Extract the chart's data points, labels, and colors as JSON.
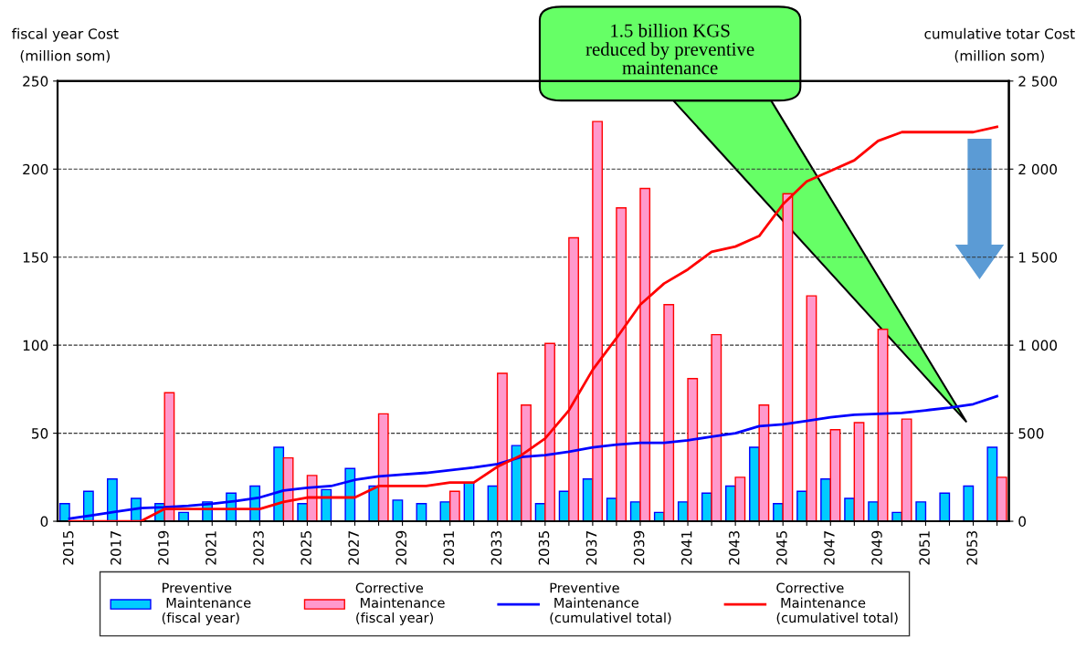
{
  "chart_data": {
    "type": "bar",
    "ylabel": "fiscal year Cost\n(million som)",
    "y2label": "cumulative totar Cost\n(million som)",
    "categories": [
      "2015",
      null,
      "2017",
      null,
      "2019",
      null,
      "2021",
      null,
      "2023",
      null,
      "2025",
      null,
      "2027",
      null,
      "2029",
      null,
      "2031",
      null,
      "2033",
      null,
      "2035",
      null,
      "2037",
      null,
      "2039",
      null,
      "2041",
      null,
      "2043",
      null,
      "2045",
      null,
      "2047",
      null,
      "2049",
      null,
      "2051",
      null,
      "2053",
      null
    ],
    "series": [
      {
        "name": "Preventive\n Maintenance\n(fiscal year)",
        "color": "#00ccff",
        "values": [
          10,
          17,
          24,
          13,
          10,
          5,
          11,
          16,
          20,
          42,
          10,
          18,
          30,
          20,
          12,
          10,
          11,
          22,
          20,
          43,
          10,
          17,
          24,
          13,
          11,
          5,
          11,
          16,
          20,
          42,
          10,
          17,
          24,
          13,
          11,
          5,
          11,
          16,
          20,
          42
        ]
      },
      {
        "name": "Corrective\n Maintenance\n(fiscal year)",
        "color": "#ff99cc",
        "values": [
          null,
          null,
          null,
          null,
          73,
          null,
          null,
          null,
          null,
          36,
          26,
          null,
          null,
          61,
          null,
          null,
          17,
          null,
          84,
          66,
          101,
          161,
          227,
          178,
          189,
          123,
          81,
          106,
          25,
          66,
          186,
          128,
          52,
          56,
          109,
          58,
          null,
          null,
          null,
          25
        ]
      },
      {
        "name": "Preventive\n Maintenance\n(cumulativel total)",
        "type": "line",
        "axis": "y2",
        "color": "#0000ff",
        "values": [
          15,
          35,
          55,
          75,
          80,
          88,
          100,
          115,
          135,
          175,
          190,
          200,
          235,
          255,
          265,
          275,
          290,
          305,
          325,
          365,
          375,
          395,
          420,
          435,
          445,
          445,
          460,
          480,
          500,
          540,
          550,
          570,
          590,
          605,
          610,
          615,
          630,
          645,
          665,
          710
        ]
      },
      {
        "name": "Corrective\n Maintenance\n(cumulativel total)",
        "type": "line",
        "axis": "y2",
        "color": "#ff0000",
        "values": [
          0,
          0,
          0,
          0,
          70,
          70,
          70,
          70,
          70,
          110,
          135,
          135,
          135,
          200,
          200,
          200,
          220,
          220,
          310,
          375,
          470,
          630,
          860,
          1040,
          1230,
          1350,
          1430,
          1530,
          1560,
          1620,
          1800,
          1930,
          1990,
          2050,
          2160,
          2210,
          2210,
          2210,
          2210,
          2240
        ]
      }
    ],
    "ylim": [
      0,
      250
    ],
    "yticks": [
      0,
      50,
      100,
      150,
      200,
      250
    ],
    "y2lim": [
      0,
      2500
    ],
    "y2ticks": [
      0,
      {
        "value": 500,
        "label": "500"
      },
      {
        "value": 1000,
        "label": "1 000"
      },
      {
        "value": 1500,
        "label": "1 500"
      },
      {
        "value": 2000,
        "label": "2 000"
      },
      {
        "value": 2500,
        "label": "2 500"
      }
    ],
    "annotations": [
      "1.5 billion KGS\nreduced by preventive\nmaintenance"
    ],
    "grid": "y",
    "legend": "bottom",
    "marker": "none",
    "line_style": "solid"
  }
}
